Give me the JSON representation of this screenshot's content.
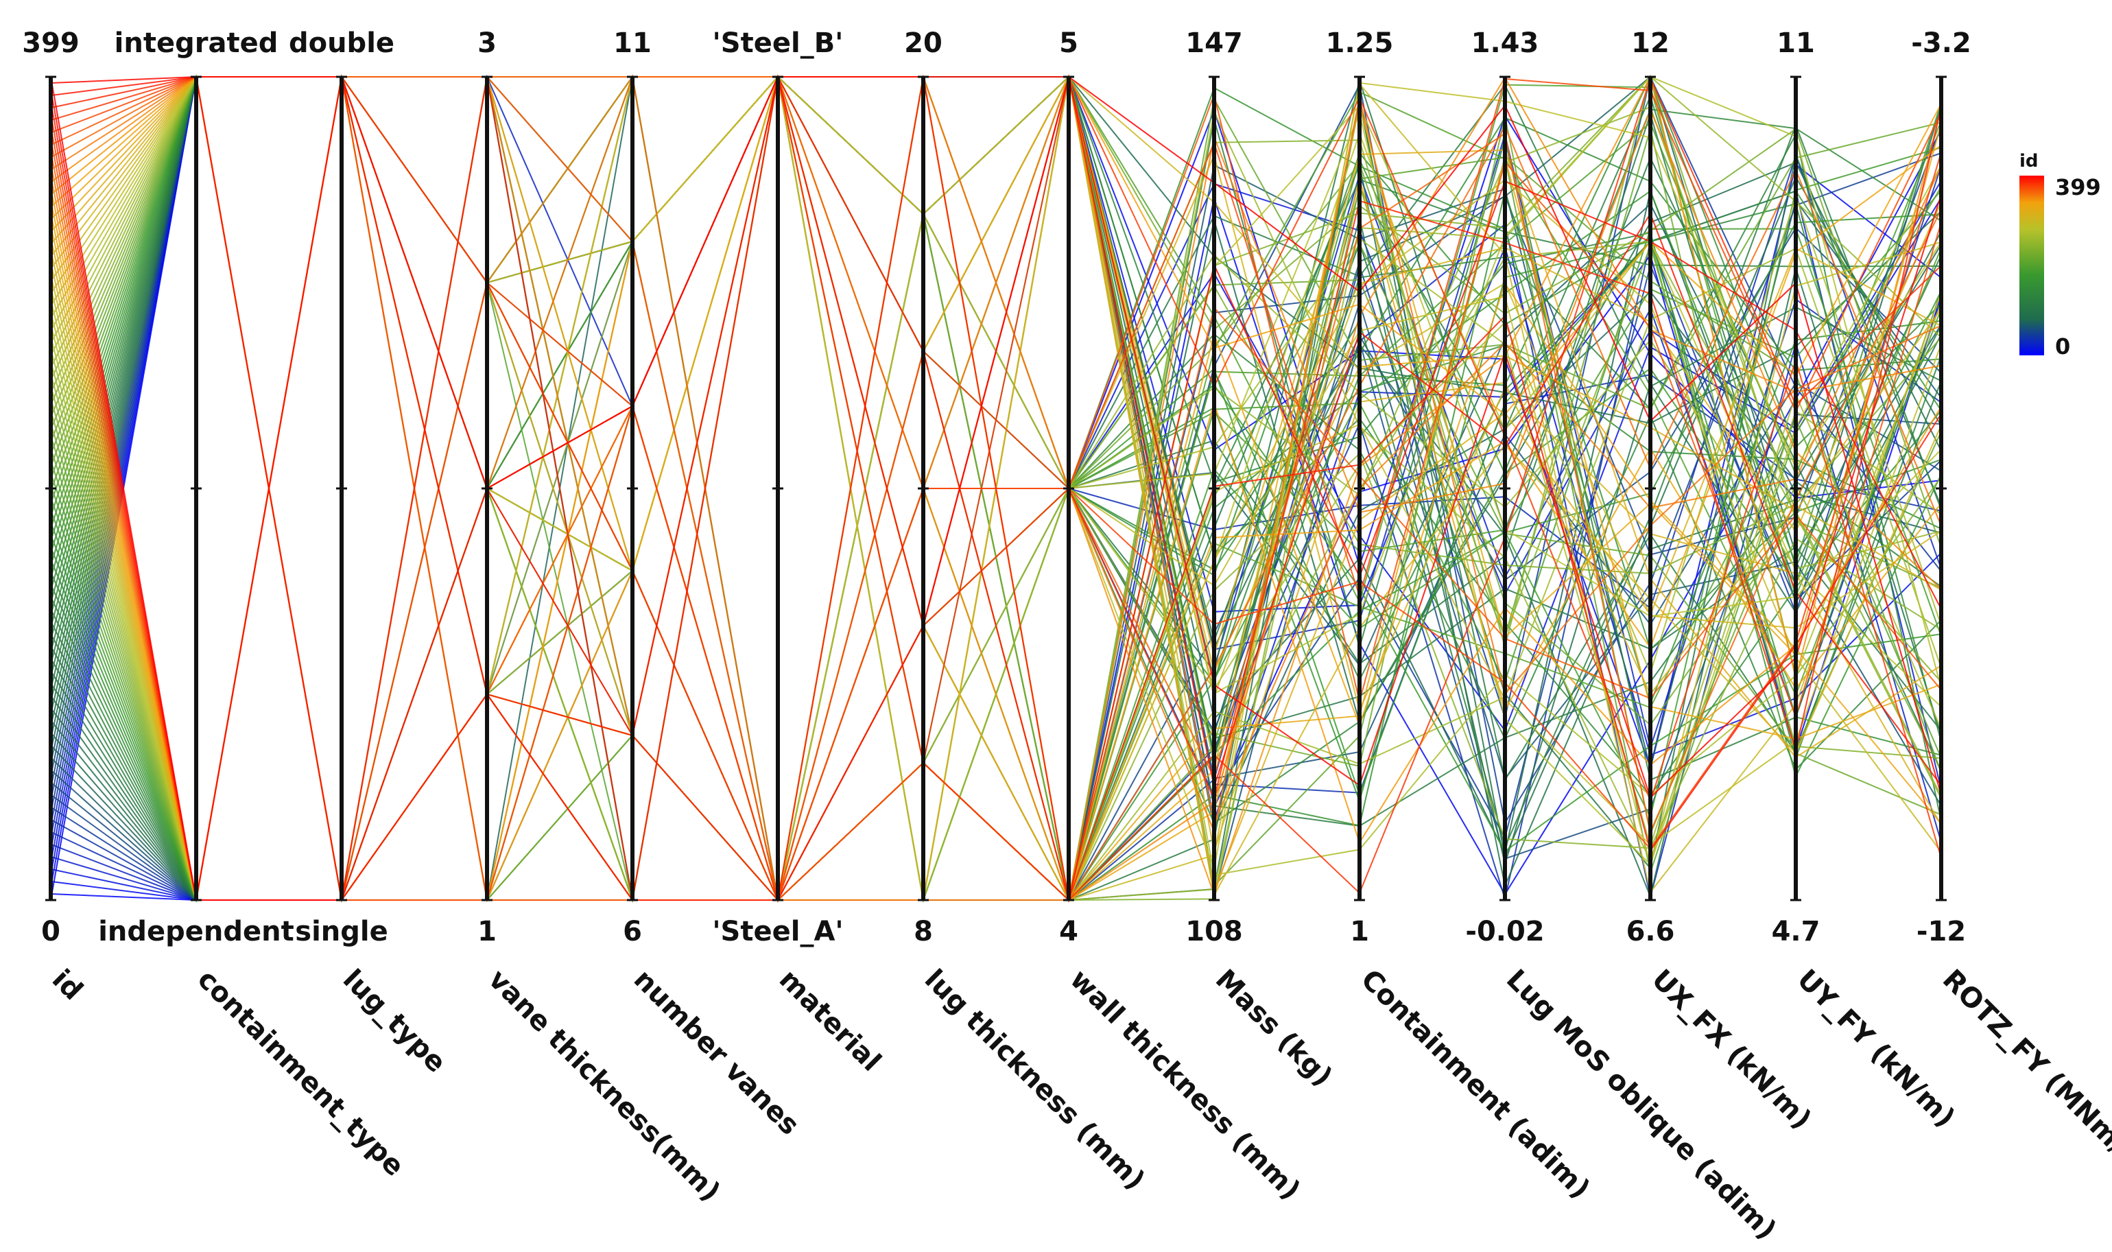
{
  "chart_data": {
    "type": "parallel-coordinates",
    "n_lines": 400,
    "color_by": "id",
    "colorscale": [
      "#0000ff",
      "#1f6b4e",
      "#3a9a2e",
      "#b7c22a",
      "#f2a20d",
      "#ff0000"
    ],
    "colorbar": {
      "title": "id",
      "max_label": "399",
      "min_label": "0",
      "min": 0,
      "max": 399
    },
    "axes": [
      {
        "name": "id",
        "top_label": "399",
        "bottom_label": "0",
        "range": [
          0,
          399
        ],
        "categorical": false
      },
      {
        "name": "containment_type",
        "top_label": "integrated",
        "bottom_label": "independent",
        "categories": [
          "independent",
          "integrated"
        ],
        "categorical": true
      },
      {
        "name": "lug_type",
        "top_label": "double",
        "bottom_label": "single",
        "categories": [
          "single",
          "double"
        ],
        "categorical": true
      },
      {
        "name": "vane thickness(mm)",
        "top_label": "3",
        "bottom_label": "1",
        "range": [
          1,
          3
        ],
        "categorical": false
      },
      {
        "name": "number vanes",
        "top_label": "11",
        "bottom_label": "6",
        "range": [
          6,
          11
        ],
        "categorical": false
      },
      {
        "name": "material",
        "top_label": "'Steel_B'",
        "bottom_label": "'Steel_A'",
        "categories": [
          "'Steel_A'",
          "'Steel_B'"
        ],
        "categorical": true
      },
      {
        "name": "lug thickness (mm)",
        "top_label": "20",
        "bottom_label": "8",
        "range": [
          8,
          20
        ],
        "categorical": false
      },
      {
        "name": "wall thickness (mm)",
        "top_label": "5",
        "bottom_label": "4",
        "range": [
          4,
          5
        ],
        "categorical": false
      },
      {
        "name": "Mass (kg)",
        "top_label": "147",
        "bottom_label": "108",
        "range": [
          108,
          147
        ],
        "categorical": false
      },
      {
        "name": "Containment (adim)",
        "top_label": "1.25",
        "bottom_label": "1",
        "range": [
          1,
          1.25
        ],
        "categorical": false
      },
      {
        "name": "Lug MoS oblique (adim)",
        "top_label": "1.43",
        "bottom_label": "-0.02",
        "range": [
          -0.02,
          1.43
        ],
        "categorical": false
      },
      {
        "name": "UX_FX (kN/m)",
        "top_label": "12",
        "bottom_label": "6.6",
        "range": [
          6.6,
          12
        ],
        "categorical": false
      },
      {
        "name": "UY_FY (kN/m)",
        "top_label": "11",
        "bottom_label": "4.7",
        "range": [
          4.7,
          11
        ],
        "categorical": false
      },
      {
        "name": "ROTZ_FY (MNm/m)",
        "top_label": "-3.2",
        "bottom_label": "-12",
        "range": [
          -12,
          -3.2
        ],
        "categorical": false
      }
    ]
  }
}
